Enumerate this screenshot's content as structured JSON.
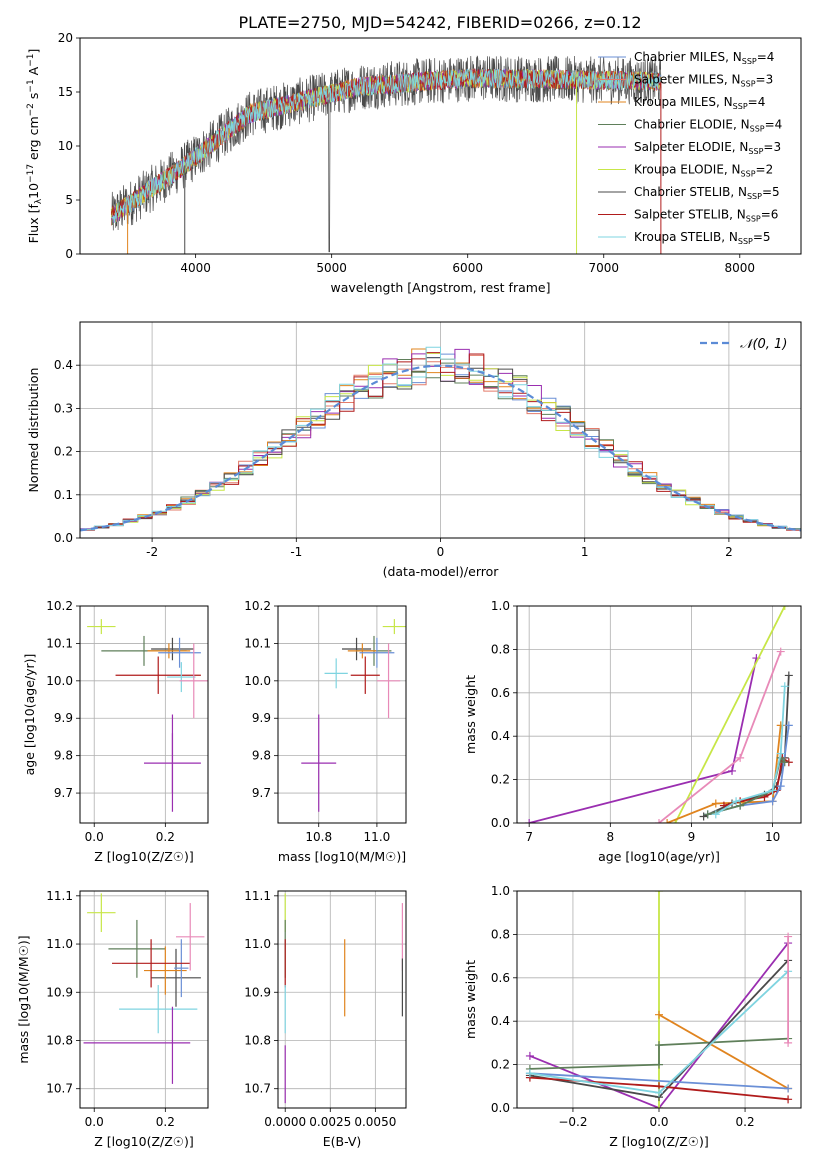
{
  "title": "PLATE=2750, MJD=54242, FIBERID=0266, z=0.12",
  "colors": {
    "Chabrier MILES": "#6a8fd6",
    "Salpeter MILES": "#e37b6a",
    "Kroupa MILES": "#e0841f",
    "Chabrier ELODIE": "#5f7f5a",
    "Salpeter ELODIE": "#9a2eb0",
    "Kroupa ELODIE": "#c7e647",
    "Chabrier STELIB": "#4a4a4a",
    "Salpeter STELIB": "#b01b1b",
    "Kroupa STELIB": "#7fd4e0",
    "Pink": "#e88ab8",
    "dashed": "#5b8bd6"
  },
  "chart_data": [
    {
      "id": "spectrum",
      "type": "line",
      "xlabel": "wavelength [Angstrom, rest frame]",
      "ylabel": "Flux [f_λ10^-17 erg cm^-2 s^-1 A^-1]",
      "xlim": [
        3150,
        8450
      ],
      "ylim": [
        0,
        20
      ],
      "xticks": [
        4000,
        5000,
        6000,
        7000,
        8000
      ],
      "yticks": [
        0,
        5,
        10,
        15,
        20
      ],
      "x_range": [
        3380,
        7420
      ],
      "legend": [
        {
          "model": "Chabrier MILES",
          "label": "Chabrier MILES, N",
          "sub": "SSP",
          "suffix": "=4"
        },
        {
          "model": "Salpeter MILES",
          "label": "Salpeter MILES, N",
          "sub": "SSP",
          "suffix": "=3"
        },
        {
          "model": "Kroupa MILES",
          "label": "Kroupa MILES, N",
          "sub": "SSP",
          "suffix": "=4"
        },
        {
          "model": "Chabrier ELODIE",
          "label": "Chabrier ELODIE, N",
          "sub": "SSP",
          "suffix": "=4"
        },
        {
          "model": "Salpeter ELODIE",
          "label": "Salpeter ELODIE, N",
          "sub": "SSP",
          "suffix": "=3"
        },
        {
          "model": "Kroupa ELODIE",
          "label": "Kroupa ELODIE, N",
          "sub": "SSP",
          "suffix": "=2"
        },
        {
          "model": "Chabrier STELIB",
          "label": "Chabrier STELIB, N",
          "sub": "SSP",
          "suffix": "=5"
        },
        {
          "model": "Salpeter STELIB",
          "label": "Salpeter STELIB, N",
          "sub": "SSP",
          "suffix": "=6"
        },
        {
          "model": "Kroupa STELIB",
          "label": "Kroupa STELIB, N",
          "sub": "SSP",
          "suffix": "=5"
        }
      ]
    },
    {
      "id": "residuals",
      "type": "histogram",
      "xlabel": "(data-model)/error",
      "ylabel": "Normed distribution",
      "xlim": [
        -2.5,
        2.5
      ],
      "ylim": [
        0,
        0.5
      ],
      "xticks": [
        -2,
        -1,
        0,
        1,
        2
      ],
      "yticks": [
        0.0,
        0.1,
        0.2,
        0.3,
        0.4
      ],
      "legend": "N(0,1)",
      "bin_width": 0.1,
      "bin_start": -2.5,
      "models": [
        "Chabrier MILES",
        "Salpeter MILES",
        "Kroupa MILES",
        "Chabrier ELODIE",
        "Salpeter ELODIE",
        "Kroupa ELODIE",
        "Chabrier STELIB",
        "Salpeter STELIB",
        "Kroupa STELIB"
      ]
    },
    {
      "id": "age_vs_Z",
      "type": "errorbar",
      "xlabel": "Z [log10(Z/Z☉)]",
      "ylabel": "age  [log10(age/yr)]",
      "xlim": [
        -0.04,
        0.32
      ],
      "ylim": [
        9.62,
        10.2
      ],
      "xticks": [
        0.0,
        0.2
      ],
      "yticks": [
        9.7,
        9.8,
        9.9,
        10.0,
        10.1,
        10.2
      ],
      "points": [
        {
          "model": "Kroupa ELODIE",
          "x": 0.02,
          "xe": 0.04,
          "y": 10.145,
          "ye": 0.02
        },
        {
          "model": "Chabrier ELODIE",
          "x": 0.14,
          "xe": 0.12,
          "y": 10.08,
          "ye": 0.04
        },
        {
          "model": "Chabrier STELIB",
          "x": 0.22,
          "xe": 0.06,
          "y": 10.085,
          "ye": 0.03
        },
        {
          "model": "Kroupa MILES",
          "x": 0.21,
          "xe": 0.06,
          "y": 10.08,
          "ye": 0.02
        },
        {
          "model": "Chabrier MILES",
          "x": 0.24,
          "xe": 0.06,
          "y": 10.075,
          "ye": 0.04
        },
        {
          "model": "Salpeter STELIB",
          "x": 0.18,
          "xe": 0.12,
          "y": 10.015,
          "ye": 0.05
        },
        {
          "model": "Kroupa STELIB",
          "x": 0.245,
          "xe": 0.04,
          "y": 10.01,
          "ye": 0.04
        },
        {
          "model": "Pink",
          "x": 0.28,
          "xe": 0.04,
          "y": 10.0,
          "ye": 0.1
        },
        {
          "model": "Salpeter ELODIE",
          "x": 0.22,
          "xe": 0.08,
          "y": 9.78,
          "ye": 0.08
        },
        {
          "model": "Salpeter ELODIE",
          "x": 0.22,
          "xe": 0.0,
          "y": 9.78,
          "ye": 0.13
        }
      ]
    },
    {
      "id": "age_vs_mass",
      "type": "errorbar",
      "xlabel": "mass [log10(M/M☉)]",
      "ylabel": "",
      "xlim": [
        10.66,
        11.1
      ],
      "ylim": [
        9.62,
        10.2
      ],
      "xticks": [
        10.8,
        11.0
      ],
      "yticks": [
        9.7,
        9.8,
        9.9,
        10.0,
        10.1,
        10.2
      ],
      "points": [
        {
          "model": "Kroupa ELODIE",
          "x": 11.06,
          "xe": 0.04,
          "y": 10.145,
          "ye": 0.02
        },
        {
          "model": "Chabrier ELODIE",
          "x": 10.99,
          "xe": 0.06,
          "y": 10.08,
          "ye": 0.04
        },
        {
          "model": "Chabrier STELIB",
          "x": 10.93,
          "xe": 0.05,
          "y": 10.085,
          "ye": 0.03
        },
        {
          "model": "Kroupa MILES",
          "x": 10.95,
          "xe": 0.05,
          "y": 10.08,
          "ye": 0.02
        },
        {
          "model": "Chabrier MILES",
          "x": 11.0,
          "xe": 0.06,
          "y": 10.075,
          "ye": 0.04
        },
        {
          "model": "Salpeter STELIB",
          "x": 10.96,
          "xe": 0.05,
          "y": 10.015,
          "ye": 0.05
        },
        {
          "model": "Kroupa STELIB",
          "x": 10.86,
          "xe": 0.04,
          "y": 10.02,
          "ye": 0.04
        },
        {
          "model": "Pink",
          "x": 11.04,
          "xe": 0.04,
          "y": 10.0,
          "ye": 0.1
        },
        {
          "model": "Salpeter ELODIE",
          "x": 10.8,
          "xe": 0.06,
          "y": 9.78,
          "ye": 0.13
        }
      ]
    },
    {
      "id": "mw_vs_age",
      "type": "line",
      "xlabel": "age  [log10(age/yr)]",
      "ylabel": "mass weight",
      "xlim": [
        6.85,
        10.35
      ],
      "ylim": [
        0,
        1.0
      ],
      "xticks": [
        7,
        8,
        9,
        10
      ],
      "yticks": [
        0.0,
        0.2,
        0.4,
        0.6,
        0.8,
        1.0
      ],
      "series": [
        {
          "model": "Salpeter ELODIE",
          "x": [
            7.0,
            9.5,
            9.8
          ],
          "y": [
            0.0,
            0.24,
            0.76
          ]
        },
        {
          "model": "Kroupa ELODIE",
          "x": [
            8.8,
            10.15
          ],
          "y": [
            0.0,
            1.0
          ]
        },
        {
          "model": "Pink",
          "x": [
            8.6,
            9.6,
            10.1
          ],
          "y": [
            0.0,
            0.3,
            0.79
          ]
        },
        {
          "model": "Kroupa MILES",
          "x": [
            8.7,
            9.3,
            10.0,
            10.1
          ],
          "y": [
            0.0,
            0.09,
            0.1,
            0.45
          ]
        },
        {
          "model": "Chabrier STELIB",
          "x": [
            9.15,
            9.5,
            9.9,
            10.05,
            10.15,
            10.2
          ],
          "y": [
            0.03,
            0.09,
            0.13,
            0.17,
            0.3,
            0.68
          ]
        },
        {
          "model": "Salpeter STELIB",
          "x": [
            9.4,
            9.6,
            9.9,
            10.05,
            10.12,
            10.2
          ],
          "y": [
            0.08,
            0.1,
            0.12,
            0.15,
            0.3,
            0.28
          ]
        },
        {
          "model": "Chabrier MILES",
          "x": [
            9.2,
            9.6,
            10.0,
            10.1,
            10.2
          ],
          "y": [
            0.04,
            0.08,
            0.1,
            0.17,
            0.45
          ]
        },
        {
          "model": "Chabrier ELODIE",
          "x": [
            9.2,
            9.6,
            10.0,
            10.1,
            10.15
          ],
          "y": [
            0.04,
            0.08,
            0.15,
            0.3,
            0.28
          ]
        },
        {
          "model": "Kroupa STELIB",
          "x": [
            9.3,
            9.55,
            10.0,
            10.1,
            10.15
          ],
          "y": [
            0.04,
            0.1,
            0.15,
            0.32,
            0.63
          ]
        }
      ]
    },
    {
      "id": "mass_vs_Z",
      "type": "errorbar",
      "xlabel": "Z [log10(Z/Z☉)]",
      "ylabel": "mass [log10(M/M☉)]",
      "xlim": [
        -0.04,
        0.32
      ],
      "ylim": [
        10.66,
        11.11
      ],
      "xticks": [
        0.0,
        0.2
      ],
      "yticks": [
        10.7,
        10.8,
        10.9,
        11.0,
        11.1
      ],
      "points": [
        {
          "model": "Kroupa ELODIE",
          "x": 0.02,
          "xe": 0.04,
          "y": 11.065,
          "ye": 0.04
        },
        {
          "model": "Chabrier ELODIE",
          "x": 0.12,
          "xe": 0.08,
          "y": 10.99,
          "ye": 0.06
        },
        {
          "model": "Chabrier STELIB",
          "x": 0.23,
          "xe": 0.07,
          "y": 10.93,
          "ye": 0.06
        },
        {
          "model": "Kroupa MILES",
          "x": 0.2,
          "xe": 0.06,
          "y": 10.945,
          "ye": 0.05
        },
        {
          "model": "Chabrier MILES",
          "x": 0.245,
          "xe": 0.02,
          "y": 10.95,
          "ye": 0.06
        },
        {
          "model": "Salpeter STELIB",
          "x": 0.16,
          "xe": 0.11,
          "y": 10.96,
          "ye": 0.05
        },
        {
          "model": "Kroupa STELIB",
          "x": 0.18,
          "xe": 0.11,
          "y": 10.865,
          "ye": 0.05
        },
        {
          "model": "Pink",
          "x": 0.27,
          "xe": 0.04,
          "y": 11.015,
          "ye": 0.07
        },
        {
          "model": "Salpeter ELODIE",
          "x": 0.22,
          "xe": 0.0,
          "y": 10.79,
          "ye": 0.08
        },
        {
          "model": "Salpeter ELODIE",
          "x": 0.12,
          "xe": 0.15,
          "y": 10.795,
          "ye": 0.0
        }
      ]
    },
    {
      "id": "mass_vs_EBV",
      "type": "errorbar",
      "xlabel": "E(B-V)",
      "ylabel": "",
      "xlim": [
        -0.0004,
        0.0067
      ],
      "ylim": [
        10.66,
        11.11
      ],
      "xticks": [
        0.0,
        0.0025,
        0.005
      ],
      "xtick_labels": [
        "0.0000",
        "0.0025",
        "0.0050"
      ],
      "yticks": [
        10.7,
        10.8,
        10.9,
        11.0,
        11.1
      ],
      "points": [
        {
          "model": "Kroupa ELODIE",
          "x": 0.0,
          "xe": 0.0,
          "y": 11.065,
          "ye": 0.04
        },
        {
          "model": "Chabrier ELODIE",
          "x": 0.0,
          "xe": 0.0,
          "y": 10.99,
          "ye": 0.06
        },
        {
          "model": "Salpeter STELIB",
          "x": 0.0,
          "xe": 0.0,
          "y": 10.96,
          "ye": 0.05
        },
        {
          "model": "Kroupa STELIB",
          "x": 0.0,
          "xe": 0.0,
          "y": 10.865,
          "ye": 0.05
        },
        {
          "model": "Salpeter ELODIE",
          "x": 0.0,
          "xe": 0.0,
          "y": 10.73,
          "ye": 0.06
        },
        {
          "model": "Kroupa MILES",
          "x": 0.0033,
          "xe": 0.0,
          "y": 10.93,
          "ye": 0.08
        },
        {
          "model": "Pink",
          "x": 0.0065,
          "xe": 0.0,
          "y": 11.015,
          "ye": 0.07
        },
        {
          "model": "Chabrier STELIB",
          "x": 0.0065,
          "xe": 0.0,
          "y": 10.91,
          "ye": 0.06
        }
      ]
    },
    {
      "id": "mw_vs_Z",
      "type": "line",
      "xlabel": "Z [log10(Z/Z☉)]",
      "ylabel": "mass weight",
      "xlim": [
        -0.33,
        0.33
      ],
      "ylim": [
        0,
        1.0
      ],
      "xticks": [
        -0.2,
        0.0,
        0.2
      ],
      "yticks": [
        0.0,
        0.2,
        0.4,
        0.6,
        0.8,
        1.0
      ],
      "series": [
        {
          "model": "Salpeter ELODIE",
          "x": [
            -0.3,
            0.0,
            0.3
          ],
          "y": [
            0.24,
            0.0,
            0.76
          ]
        },
        {
          "model": "Kroupa ELODIE",
          "x": [
            0.0,
            0.0
          ],
          "y": [
            0.0,
            1.0
          ]
        },
        {
          "model": "Kroupa MILES",
          "x": [
            0.0,
            0.3
          ],
          "y": [
            0.43,
            0.09
          ]
        },
        {
          "model": "Chabrier ELODIE",
          "x": [
            -0.3,
            0.0,
            0.0,
            0.3
          ],
          "y": [
            0.18,
            0.2,
            0.29,
            0.32
          ]
        },
        {
          "model": "Chabrier STELIB",
          "x": [
            -0.3,
            0.0,
            0.3
          ],
          "y": [
            0.15,
            0.05,
            0.68
          ]
        },
        {
          "model": "Salpeter STELIB",
          "x": [
            -0.3,
            0.0,
            0.3
          ],
          "y": [
            0.14,
            0.1,
            0.04
          ]
        },
        {
          "model": "Chabrier MILES",
          "x": [
            -0.3,
            0.3
          ],
          "y": [
            0.16,
            0.09
          ]
        },
        {
          "model": "Kroupa STELIB",
          "x": [
            -0.3,
            0.0,
            0.3
          ],
          "y": [
            0.16,
            0.07,
            0.63
          ]
        },
        {
          "model": "Pink",
          "x": [
            0.3,
            0.3
          ],
          "y": [
            0.3,
            0.79
          ]
        }
      ]
    }
  ]
}
